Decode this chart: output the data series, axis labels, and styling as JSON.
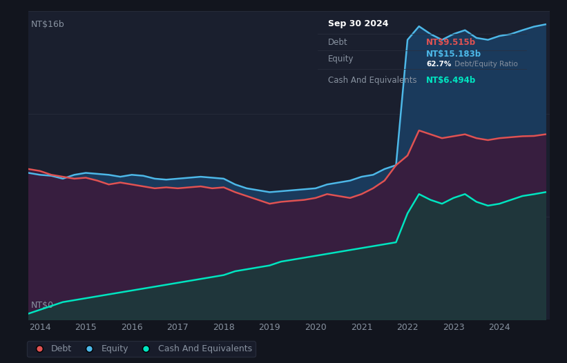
{
  "bg_color": "#12151e",
  "plot_bg_color": "#1a1f2e",
  "ylabel_top": "NT$16b",
  "ylabel_bottom": "NT$0",
  "x_start_year": 2013.75,
  "x_end_year": 2025.1,
  "y_max": 16000000000,
  "y_min": 0,
  "debt_color": "#e05252",
  "equity_color": "#4db8e8",
  "cash_color": "#00e5c0",
  "equity_fill_color": "#1a3a5c",
  "debt_fill_color": "#3d1a3a",
  "cash_fill_color": "#1a3d3a",
  "tooltip_bg": "#0d0f14",
  "tooltip_border": "#2a2f3e",
  "annotation_date": "Sep 30 2024",
  "annotation_debt_label": "Debt",
  "annotation_debt_value": "NT$9.515b",
  "annotation_equity_label": "Equity",
  "annotation_equity_value": "NT$15.183b",
  "annotation_ratio": "62.7%",
  "annotation_ratio_text": " Debt/Equity Ratio",
  "annotation_cash_label": "Cash And Equivalents",
  "annotation_cash_value": "NT$6.494b",
  "legend_items": [
    "Debt",
    "Equity",
    "Cash And Equivalents"
  ],
  "legend_colors": [
    "#e05252",
    "#4db8e8",
    "#00e5c0"
  ],
  "grid_color": "#2a2f3e",
  "tick_color": "#8892a0",
  "x_ticks": [
    2014,
    2015,
    2016,
    2017,
    2018,
    2019,
    2020,
    2021,
    2022,
    2023,
    2024
  ],
  "years": [
    2013.75,
    2014.0,
    2014.25,
    2014.5,
    2014.75,
    2015.0,
    2015.25,
    2015.5,
    2015.75,
    2016.0,
    2016.25,
    2016.5,
    2016.75,
    2017.0,
    2017.25,
    2017.5,
    2017.75,
    2018.0,
    2018.25,
    2018.5,
    2018.75,
    2019.0,
    2019.25,
    2019.5,
    2019.75,
    2020.0,
    2020.25,
    2020.5,
    2020.75,
    2021.0,
    2021.25,
    2021.5,
    2021.75,
    2022.0,
    2022.25,
    2022.5,
    2022.75,
    2023.0,
    2023.25,
    2023.5,
    2023.75,
    2024.0,
    2024.25,
    2024.5,
    2024.75,
    2025.0
  ],
  "equity": [
    7600000000,
    7500000000,
    7450000000,
    7300000000,
    7500000000,
    7600000000,
    7550000000,
    7500000000,
    7400000000,
    7500000000,
    7450000000,
    7300000000,
    7250000000,
    7300000000,
    7350000000,
    7400000000,
    7350000000,
    7300000000,
    7000000000,
    6800000000,
    6700000000,
    6600000000,
    6650000000,
    6700000000,
    6750000000,
    6800000000,
    7000000000,
    7100000000,
    7200000000,
    7400000000,
    7500000000,
    7800000000,
    8000000000,
    14500000000,
    15200000000,
    14800000000,
    14500000000,
    14800000000,
    15000000000,
    14600000000,
    14500000000,
    14700000000,
    14800000000,
    15000000000,
    15183000000,
    15300000000
  ],
  "debt": [
    7800000000,
    7700000000,
    7500000000,
    7400000000,
    7300000000,
    7350000000,
    7200000000,
    7000000000,
    7100000000,
    7000000000,
    6900000000,
    6800000000,
    6850000000,
    6800000000,
    6850000000,
    6900000000,
    6800000000,
    6850000000,
    6600000000,
    6400000000,
    6200000000,
    6000000000,
    6100000000,
    6150000000,
    6200000000,
    6300000000,
    6500000000,
    6400000000,
    6300000000,
    6500000000,
    6800000000,
    7200000000,
    8000000000,
    8500000000,
    9800000000,
    9600000000,
    9400000000,
    9500000000,
    9600000000,
    9400000000,
    9300000000,
    9400000000,
    9450000000,
    9500000000,
    9515000000,
    9600000000
  ],
  "cash": [
    300000000,
    500000000,
    700000000,
    900000000,
    1000000000,
    1100000000,
    1200000000,
    1300000000,
    1400000000,
    1500000000,
    1600000000,
    1700000000,
    1800000000,
    1900000000,
    2000000000,
    2100000000,
    2200000000,
    2300000000,
    2500000000,
    2600000000,
    2700000000,
    2800000000,
    3000000000,
    3100000000,
    3200000000,
    3300000000,
    3400000000,
    3500000000,
    3600000000,
    3700000000,
    3800000000,
    3900000000,
    4000000000,
    5500000000,
    6500000000,
    6200000000,
    6000000000,
    6300000000,
    6500000000,
    6100000000,
    5900000000,
    6000000000,
    6200000000,
    6400000000,
    6494000000,
    6600000000
  ]
}
